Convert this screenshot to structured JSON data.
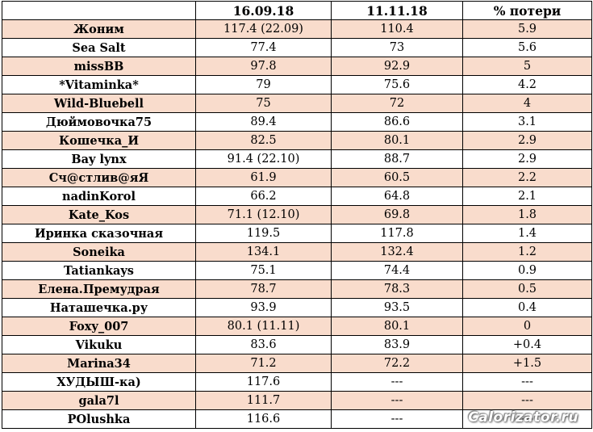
{
  "table": {
    "headers": [
      "",
      "16.09.18",
      "11.11.18",
      "% потери"
    ],
    "rows": [
      [
        "Жоним",
        "117.4 (22.09)",
        "110.4",
        "5.9"
      ],
      [
        "Sea Salt",
        "77.4",
        "73",
        "5.6"
      ],
      [
        "missBB",
        "97.8",
        "92.9",
        "5"
      ],
      [
        "*Vitaminka*",
        "79",
        "75.6",
        "4.2"
      ],
      [
        "Wild-Bluebell",
        "75",
        "72",
        "4"
      ],
      [
        "Дюймовочка75",
        "89.4",
        "86.6",
        "3.1"
      ],
      [
        "Кошечка_И",
        "82.5",
        "80.1",
        "2.9"
      ],
      [
        "Bay lynx",
        "91.4 (22.10)",
        "88.7",
        "2.9"
      ],
      [
        "Сч@стлив@яЯ",
        "61.9",
        "60.5",
        "2.2"
      ],
      [
        "nadinKorol",
        "66.2",
        "64.8",
        "2.1"
      ],
      [
        "Kate_Kos",
        "71.1 (12.10)",
        "69.8",
        "1.8"
      ],
      [
        "Иринка сказочная",
        "119.5",
        "117.8",
        "1.4"
      ],
      [
        "Soneika",
        "134.1",
        "132.4",
        "1.2"
      ],
      [
        "Tatiankays",
        "75.1",
        "74.4",
        "0.9"
      ],
      [
        "Елена.Премудрая",
        "78.7",
        "78.3",
        "0.5"
      ],
      [
        "Наташечка.ру",
        "93.9",
        "93.5",
        "0.4"
      ],
      [
        "Foxy_007",
        "80.1 (11.11)",
        "80.1",
        "0"
      ],
      [
        "Vikuku",
        "83.6",
        "83.9",
        "+0.4"
      ],
      [
        "Marina34",
        "71.2",
        "72.2",
        "+1.5"
      ],
      [
        "ХУДЫШ-ка)",
        "117.6",
        "---",
        "---"
      ],
      [
        "gala7l",
        "111.7",
        "---",
        "---"
      ],
      [
        "POlushka",
        "116.6",
        "---",
        "---"
      ]
    ]
  },
  "watermark": "Calorizator.ru",
  "colors": {
    "odd_row": "#f9dccc",
    "even_row": "#ffffff",
    "border": "#000000"
  }
}
